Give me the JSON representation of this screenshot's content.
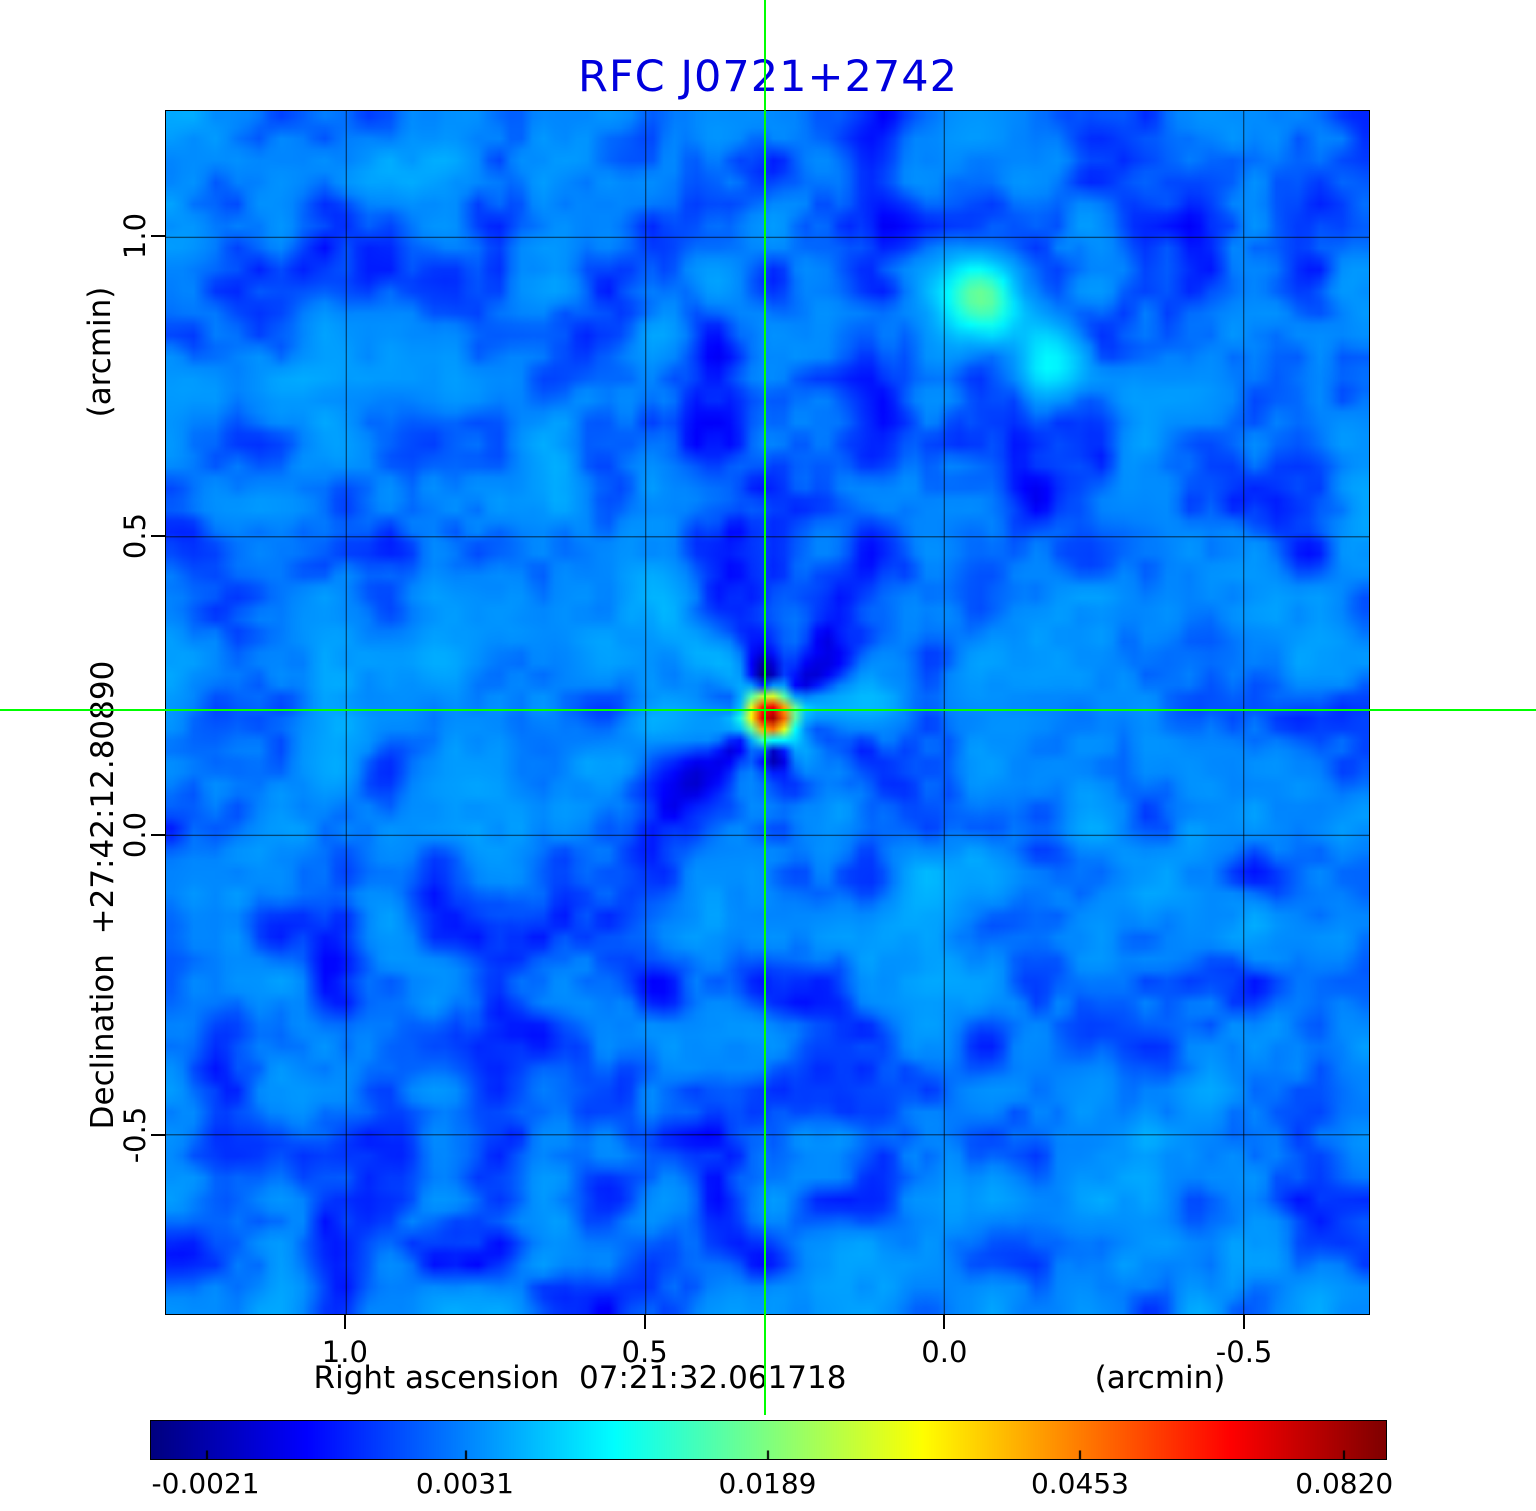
{
  "title": "RFC J0721+2742",
  "title_color": "#0000dd",
  "axes": {
    "y_unit_label": "(arcmin)",
    "y_axis_label": "Declination  +27:42:12.80890",
    "x_axis_label": "Right ascension  07:21:32.061718",
    "x_unit_label": "(arcmin)"
  },
  "chart_data": {
    "type": "heatmap",
    "title": "RFC J0721+2742",
    "xlabel": "Right ascension 07:21:32.061718 (arcmin)",
    "ylabel": "Declination +27:42:12.80890 (arcmin)",
    "xlim": [
      1.3,
      -0.71
    ],
    "ylim": [
      -0.8,
      1.21
    ],
    "x_ticks": [
      1.0,
      0.5,
      0.0,
      -0.5
    ],
    "y_ticks": [
      1.0,
      0.5,
      0.0,
      -0.5
    ],
    "grid": true,
    "background_level": 0.0028,
    "crosshair": {
      "x": 0.3,
      "y": 0.21,
      "color": "#00ff00"
    },
    "sources": [
      {
        "name": "main-source",
        "x": 0.3,
        "y": 0.21,
        "peak": 0.082,
        "sigma_arcmin": 0.022,
        "artifacts": true
      },
      {
        "name": "secondary-source-a",
        "x": -0.05,
        "y": 0.9,
        "peak": 0.014,
        "sigma_arcmin": 0.045
      },
      {
        "name": "secondary-source-b",
        "x": -0.17,
        "y": 0.8,
        "peak": 0.008,
        "sigma_arcmin": 0.04
      }
    ],
    "colorbar": {
      "colormap": "jet",
      "vmin": -0.0021,
      "vmax": 0.082,
      "tick_labels": [
        "-0.0021",
        "0.0031",
        "0.0189",
        "0.0453",
        "0.0820"
      ],
      "tick_positions": [
        0.045,
        0.255,
        0.5,
        0.753,
        0.967
      ]
    }
  }
}
